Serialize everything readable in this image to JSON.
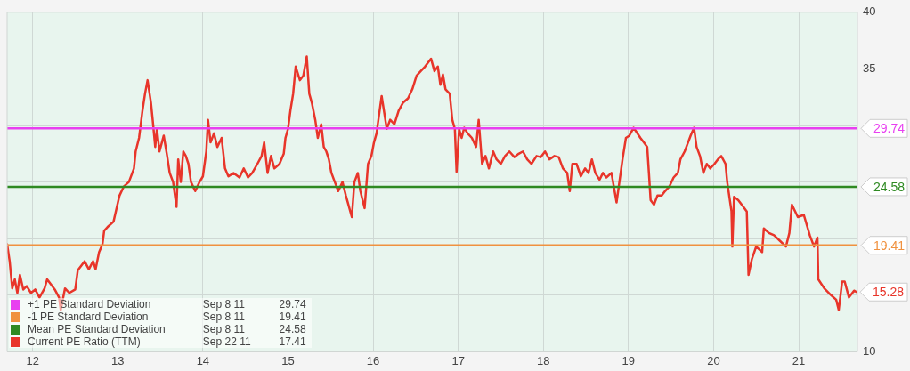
{
  "chart_data": {
    "type": "line",
    "xlim": [
      11.7,
      21.69
    ],
    "xticks": [
      12,
      13,
      14,
      15,
      16,
      17,
      18,
      19,
      20,
      21
    ],
    "ylim": [
      10,
      40
    ],
    "yticks": [
      10,
      {
        "value": 15,
        "label": null
      },
      {
        "value": 20,
        "label": null
      },
      {
        "value": 25,
        "label": null
      },
      {
        "value": 30,
        "label": null
      },
      35,
      40
    ],
    "grid": true,
    "legend": "bottom left",
    "marker": "none",
    "line_style": "solid",
    "series": [
      {
        "name": "+1 PE Standard Deviation",
        "color": "#e83ff0",
        "x": [
          11.7,
          21.69
        ],
        "values": [
          29.74,
          29.74
        ]
      },
      {
        "name": "-1 PE Standard Deviation",
        "color": "#f0913f",
        "x": [
          11.7,
          21.69
        ],
        "values": [
          19.41,
          19.41
        ]
      },
      {
        "name": "Mean PE Standard Deviation",
        "color": "#2f8a22",
        "x": [
          11.7,
          21.69
        ],
        "values": [
          24.58,
          24.58
        ]
      },
      {
        "name": "Current PE Ratio (TTM)",
        "color": "#e8352a",
        "x": [
          11.7,
          11.73,
          11.76,
          11.79,
          11.82,
          11.85,
          11.89,
          11.93,
          11.98,
          12.03,
          12.08,
          12.14,
          12.17,
          12.21,
          12.26,
          12.31,
          12.33,
          12.38,
          12.43,
          12.5,
          12.53,
          12.57,
          12.61,
          12.66,
          12.71,
          12.74,
          12.78,
          12.82,
          12.84,
          12.89,
          12.95,
          12.98,
          13.02,
          13.07,
          13.13,
          13.19,
          13.21,
          13.25,
          13.29,
          13.32,
          13.35,
          13.39,
          13.41,
          13.44,
          13.46,
          13.49,
          13.54,
          13.58,
          13.61,
          13.65,
          13.69,
          13.71,
          13.74,
          13.77,
          13.8,
          13.83,
          13.86,
          13.91,
          13.96,
          14.0,
          14.04,
          14.06,
          14.09,
          14.13,
          14.17,
          14.22,
          14.26,
          14.3,
          14.36,
          14.43,
          14.48,
          14.53,
          14.58,
          14.64,
          14.69,
          14.72,
          14.76,
          14.8,
          14.84,
          14.9,
          14.95,
          14.97,
          15.0,
          15.03,
          15.06,
          15.09,
          15.14,
          15.18,
          15.22,
          15.25,
          15.28,
          15.32,
          15.35,
          15.39,
          15.42,
          15.45,
          15.48,
          15.51,
          15.55,
          15.59,
          15.64,
          15.68,
          15.75,
          15.78,
          15.82,
          15.85,
          15.9,
          15.94,
          15.98,
          16.01,
          16.04,
          16.1,
          16.16,
          16.2,
          16.25,
          16.3,
          16.35,
          16.41,
          16.46,
          16.51,
          16.56,
          16.61,
          16.68,
          16.72,
          16.76,
          16.79,
          16.82,
          16.85,
          16.9,
          16.93,
          16.96,
          16.98,
          17.01,
          17.04,
          17.07,
          17.11,
          17.16,
          17.21,
          17.24,
          17.28,
          17.32,
          17.36,
          17.41,
          17.45,
          17.5,
          17.55,
          17.6,
          17.66,
          17.71,
          17.76,
          17.81,
          17.86,
          17.92,
          17.97,
          18.02,
          18.07,
          18.13,
          18.18,
          18.23,
          18.28,
          18.31,
          18.34,
          18.39,
          18.44,
          18.49,
          18.53,
          18.57,
          18.61,
          18.66,
          18.7,
          18.74,
          18.8,
          18.86,
          18.93,
          18.97,
          19.01,
          19.06,
          19.14,
          19.18,
          19.22,
          19.24,
          19.26,
          19.3,
          19.34,
          19.39,
          19.43,
          19.48,
          19.53,
          19.58,
          19.61,
          19.66,
          19.7,
          19.73,
          19.77,
          19.8,
          19.84,
          19.88,
          19.92,
          19.96,
          20.01,
          20.05,
          20.09,
          20.14,
          20.16,
          20.21,
          20.22,
          20.24,
          20.29,
          20.36,
          20.39,
          20.41,
          20.45,
          20.5,
          20.57,
          20.59,
          20.65,
          20.71,
          20.78,
          20.85,
          20.89,
          20.92,
          20.99,
          21.06,
          21.13,
          21.18,
          21.22,
          21.23,
          21.3,
          21.38,
          21.44,
          21.47,
          21.51,
          21.54,
          21.59,
          21.65,
          21.68
        ],
        "values": [
          19.5,
          18.0,
          15.6,
          16.4,
          15.2,
          16.8,
          15.5,
          15.8,
          15.2,
          15.5,
          14.8,
          15.6,
          16.4,
          16.0,
          15.5,
          14.8,
          13.7,
          15.6,
          15.2,
          15.5,
          17.2,
          17.6,
          18.0,
          17.3,
          18.0,
          17.3,
          18.8,
          19.5,
          20.7,
          21.1,
          21.5,
          22.5,
          23.8,
          24.6,
          25.0,
          26.2,
          27.7,
          28.9,
          31.3,
          32.8,
          34.0,
          32.0,
          30.5,
          28.1,
          29.7,
          27.7,
          29.1,
          27.3,
          25.8,
          25.0,
          22.8,
          27.0,
          25.0,
          27.7,
          27.3,
          26.6,
          25.0,
          24.2,
          25.0,
          25.5,
          27.7,
          30.5,
          28.5,
          29.3,
          28.1,
          28.9,
          26.2,
          25.5,
          25.8,
          25.4,
          26.2,
          25.4,
          25.8,
          26.6,
          27.3,
          28.5,
          25.8,
          27.3,
          26.2,
          26.6,
          27.5,
          28.9,
          29.7,
          31.4,
          32.8,
          35.2,
          34.0,
          34.4,
          36.1,
          32.8,
          32.0,
          30.5,
          28.9,
          30.1,
          28.1,
          27.7,
          27.0,
          25.8,
          25.0,
          24.2,
          25.0,
          23.8,
          21.9,
          25.0,
          25.8,
          24.2,
          22.7,
          26.6,
          27.3,
          28.5,
          29.3,
          32.6,
          29.7,
          30.5,
          30.1,
          31.3,
          32.0,
          32.4,
          33.2,
          34.4,
          34.8,
          35.2,
          35.9,
          34.8,
          35.2,
          33.6,
          34.5,
          33.2,
          32.8,
          30.5,
          29.7,
          25.9,
          29.7,
          28.9,
          29.8,
          29.3,
          28.9,
          28.1,
          30.5,
          26.6,
          27.3,
          26.2,
          27.7,
          27.0,
          26.6,
          27.3,
          27.7,
          27.2,
          27.5,
          27.7,
          27.0,
          26.6,
          27.3,
          27.2,
          27.7,
          27.0,
          27.3,
          27.2,
          26.2,
          25.8,
          24.2,
          26.6,
          26.6,
          25.5,
          26.2,
          25.8,
          27.0,
          25.8,
          25.2,
          25.8,
          25.4,
          25.8,
          23.2,
          27.0,
          28.9,
          29.1,
          29.8,
          28.9,
          28.5,
          28.1,
          25.8,
          23.4,
          23.0,
          23.8,
          23.8,
          24.2,
          24.6,
          25.4,
          25.8,
          27.0,
          27.7,
          28.5,
          29.1,
          29.8,
          28.1,
          27.3,
          25.8,
          26.6,
          26.2,
          26.6,
          27.0,
          27.3,
          26.6,
          25.0,
          22.4,
          19.3,
          23.7,
          23.4,
          22.7,
          22.4,
          16.8,
          18.2,
          19.3,
          18.8,
          20.9,
          20.5,
          20.3,
          19.8,
          19.3,
          20.5,
          23.0,
          21.9,
          22.1,
          20.3,
          19.3,
          20.1,
          16.4,
          15.6,
          15.0,
          14.6,
          13.7,
          16.2,
          16.2,
          14.8,
          15.4,
          15.28
        ]
      }
    ],
    "annotations": [
      "29.74",
      "19.41",
      "24.58",
      "15.28",
      "Sep 8 11",
      "29.74",
      "Sep 8 11",
      "19.41",
      "Sep 8 11",
      "24.58",
      "Sep 22 11",
      "17.41"
    ]
  }
}
